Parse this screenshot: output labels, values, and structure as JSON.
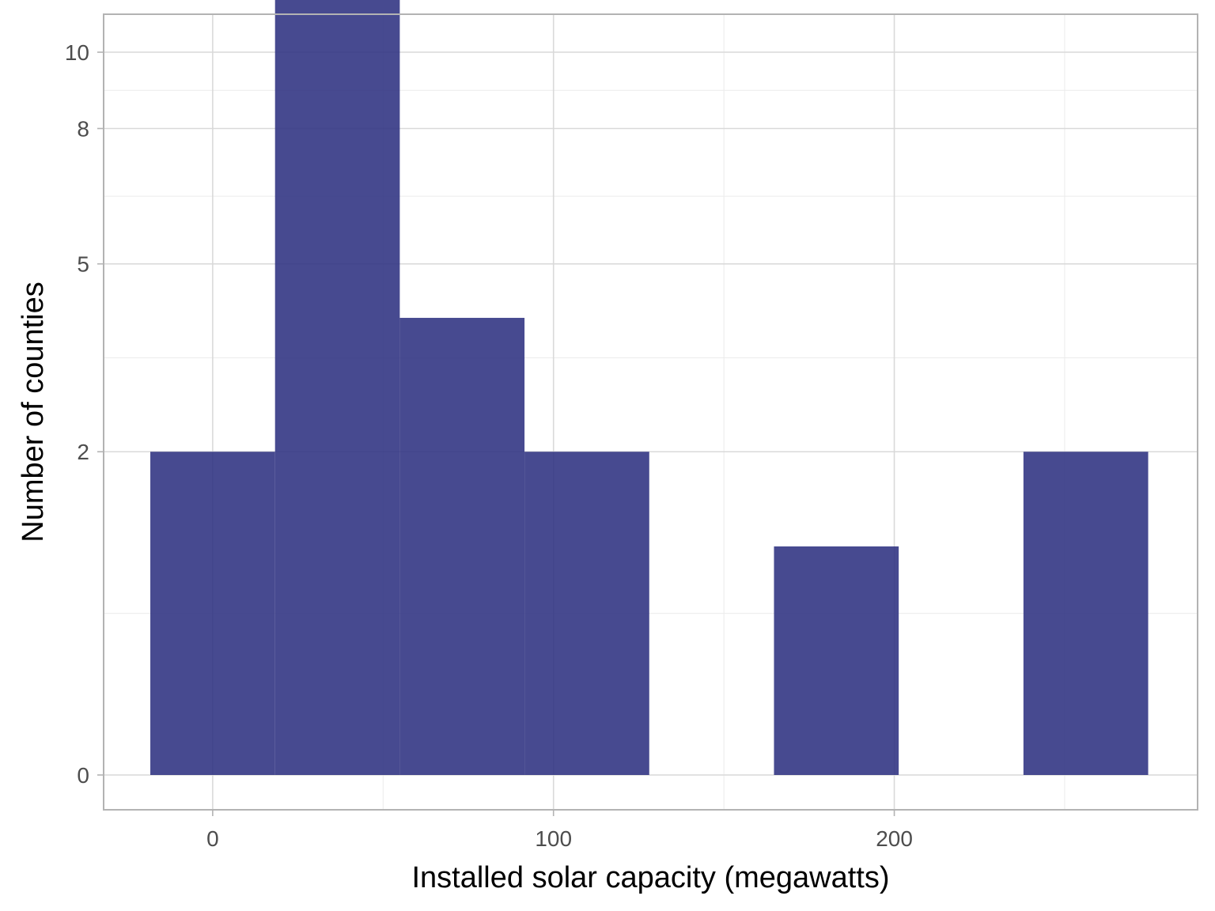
{
  "chart_data": {
    "type": "bar",
    "subtype": "histogram",
    "title": "",
    "xlabel": "Installed solar capacity (megawatts)",
    "ylabel": "Number of counties",
    "bin_width": 36.6,
    "bins": [
      {
        "x0": -18.3,
        "x1": 18.3,
        "count": 2
      },
      {
        "x0": 18.3,
        "x1": 54.9,
        "count": 13
      },
      {
        "x0": 54.9,
        "x1": 91.5,
        "count": 4
      },
      {
        "x0": 91.5,
        "x1": 128.1,
        "count": 2
      },
      {
        "x0": 128.1,
        "x1": 164.7,
        "count": 0
      },
      {
        "x0": 164.7,
        "x1": 201.3,
        "count": 1
      },
      {
        "x0": 201.3,
        "x1": 237.9,
        "count": 0
      },
      {
        "x0": 237.9,
        "x1": 274.5,
        "count": 2
      }
    ],
    "xlim": [
      -32,
      289
    ],
    "x_ticks": [
      0,
      100,
      200
    ],
    "x_tick_labels": [
      "0",
      "100",
      "200"
    ],
    "y_scale": "sqrt",
    "ylim": [
      0,
      14.3
    ],
    "y_ticks": [
      0,
      2,
      5,
      8,
      10
    ],
    "y_tick_labels": [
      "0",
      "2",
      "5",
      "8",
      "10"
    ],
    "bar_color": "#2e3181",
    "bar_opacity": 0.88,
    "grid": true,
    "legend": "none"
  }
}
